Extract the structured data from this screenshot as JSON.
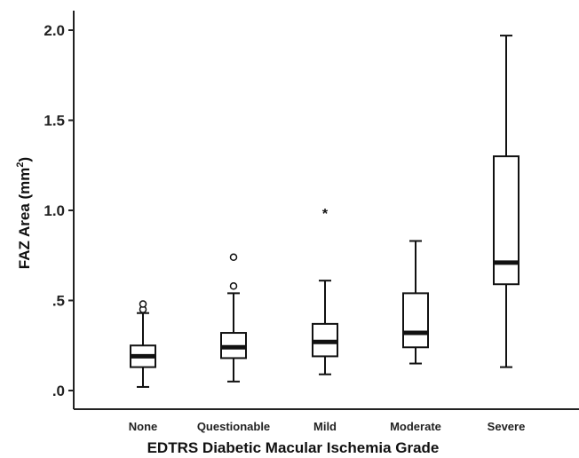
{
  "chart_data": {
    "type": "boxplot",
    "xlabel": "EDTRS Diabetic Macular Ischemia Grade",
    "ylabel_main": "FAZ Area (mm",
    "ylabel_sup": "2",
    "ylabel_close": ")",
    "ylim": [
      -0.1,
      2.08
    ],
    "y_ticks": [
      0.0,
      0.5,
      1.0,
      1.5,
      2.0
    ],
    "y_tick_labels": [
      ".0",
      ".5",
      "1.0",
      "1.5",
      "2.0"
    ],
    "grid": false,
    "categories": [
      "None",
      "Questionable",
      "Mild",
      "Moderate",
      "Severe"
    ],
    "boxes": [
      {
        "category": "None",
        "whisker_low": 0.02,
        "q1": 0.13,
        "median": 0.19,
        "q3": 0.25,
        "whisker_high": 0.43,
        "outliers": [
          0.45,
          0.48
        ],
        "extremes": []
      },
      {
        "category": "Questionable",
        "whisker_low": 0.05,
        "q1": 0.18,
        "median": 0.24,
        "q3": 0.32,
        "whisker_high": 0.54,
        "outliers": [
          0.58,
          0.74
        ],
        "extremes": []
      },
      {
        "category": "Mild",
        "whisker_low": 0.09,
        "q1": 0.19,
        "median": 0.27,
        "q3": 0.37,
        "whisker_high": 0.61,
        "outliers": [],
        "extremes": [
          1.0
        ]
      },
      {
        "category": "Moderate",
        "whisker_low": 0.15,
        "q1": 0.24,
        "median": 0.32,
        "q3": 0.54,
        "whisker_high": 0.83,
        "outliers": [],
        "extremes": []
      },
      {
        "category": "Severe",
        "whisker_low": 0.13,
        "q1": 0.59,
        "median": 0.71,
        "q3": 1.3,
        "whisker_high": 1.97,
        "outliers": [],
        "extremes": []
      }
    ]
  }
}
